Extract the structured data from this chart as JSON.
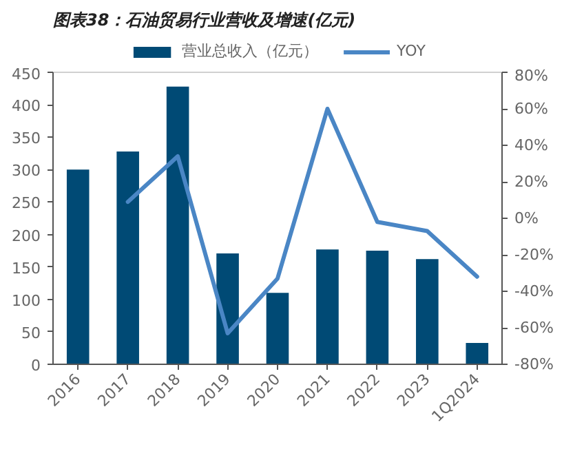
{
  "chart_data": {
    "type": "bar",
    "title": "图表38：石油贸易行业营收及增速(亿元)",
    "categories": [
      "2016",
      "2017",
      "2018",
      "2019",
      "2020",
      "2021",
      "2022",
      "2023",
      "1Q2024"
    ],
    "series": [
      {
        "name": "营业总收入（亿元）",
        "color": "#004a75",
        "values": [
          300,
          328,
          428,
          171,
          110,
          177,
          175,
          162,
          33
        ]
      },
      {
        "name": "YOY",
        "type": "line",
        "axis": "y2",
        "color": "#4a86c5",
        "values": [
          null,
          9,
          34,
          -63,
          -33,
          60,
          -2,
          -7,
          -32
        ]
      }
    ],
    "ylim": [
      0,
      450
    ],
    "yticks": [
      0,
      50,
      100,
      150,
      200,
      250,
      300,
      350,
      400,
      450
    ],
    "y2lim": [
      -80,
      80
    ],
    "y2ticks": [
      {
        "value": -80,
        "label": "-80%"
      },
      {
        "value": -60,
        "label": "-60%"
      },
      {
        "value": -40,
        "label": "-40%"
      },
      {
        "value": -20,
        "label": "-20%"
      },
      {
        "value": 0,
        "label": "0%"
      },
      {
        "value": 20,
        "label": "20%"
      },
      {
        "value": 40,
        "label": "40%"
      },
      {
        "value": 60,
        "label": "60%"
      },
      {
        "value": 80,
        "label": "80%"
      }
    ],
    "legend": "top",
    "grid": false
  }
}
